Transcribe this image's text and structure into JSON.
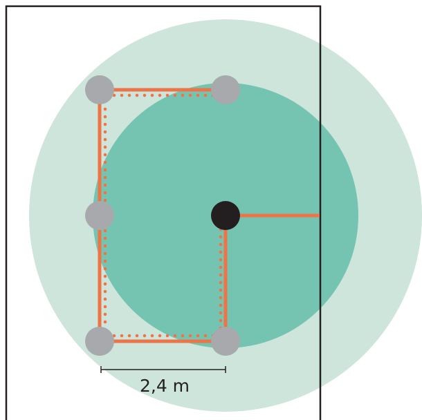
{
  "diagram": {
    "dimension_label": "2,4 m"
  },
  "colors": {
    "outer_zone": "#cde5da",
    "inner_zone": "#75c4b1",
    "path": "#ee7347",
    "anchor": "#a7a9ac",
    "center_point": "#231f20",
    "frame": "#231f20"
  }
}
